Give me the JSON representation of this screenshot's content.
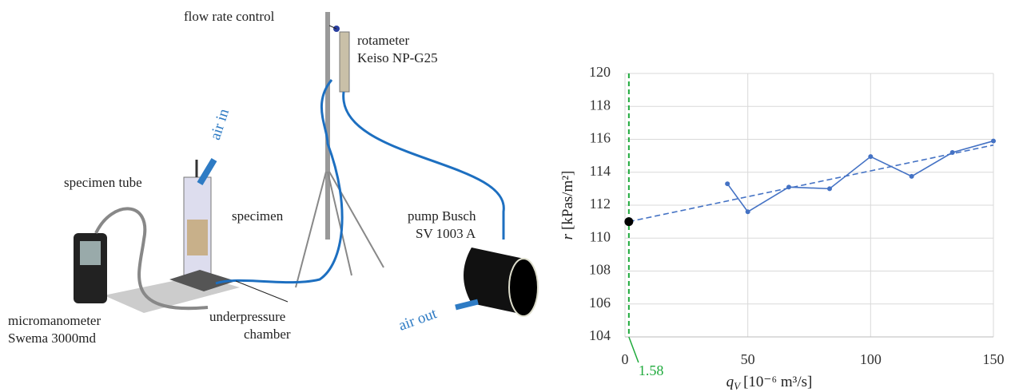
{
  "diagram": {
    "labels": {
      "flow_rate_control": "flow rate control",
      "rotameter": "rotameter",
      "rotameter_model": "Keiso NP-G25",
      "air_in": "air in",
      "specimen_tube": "specimen tube",
      "specimen": "specimen",
      "pump": "pump Busch",
      "pump_model": "SV 1003 A",
      "micromanometer": "micromanometer",
      "micromanometer_model": "Swema 3000md",
      "chamber_1": "underpressure",
      "chamber_2": "chamber",
      "air_out": "air out"
    }
  },
  "chart_data": {
    "type": "line",
    "xlabel": {
      "symbol": "q",
      "subscript": "V",
      "unit": "[10⁻⁶ m³/s]"
    },
    "ylabel": {
      "symbol": "r",
      "unit": "[kPas/m²]"
    },
    "xlim": [
      0,
      150
    ],
    "xticks": [
      0,
      50,
      100,
      150
    ],
    "ylim": [
      104,
      120
    ],
    "yticks": [
      104,
      106,
      108,
      110,
      112,
      114,
      116,
      118,
      120
    ],
    "grid": true,
    "series": [
      {
        "style": "solid-markers",
        "color": "#4472c4",
        "x": [
          41.7,
          50,
          66.7,
          83.3,
          100,
          116.7,
          133.3,
          150
        ],
        "values": [
          113.3,
          111.6,
          113.1,
          113.0,
          114.95,
          113.75,
          115.2,
          115.9
        ]
      },
      {
        "style": "dashed",
        "color": "#4472c4",
        "x": [
          1.58,
          150
        ],
        "values": [
          111.0,
          115.65
        ]
      },
      {
        "style": "point",
        "color": "#000000",
        "x": [
          1.58
        ],
        "values": [
          111.0
        ]
      }
    ],
    "vline": {
      "x": 1.58,
      "label": "1.58",
      "color": "#1faa3c"
    }
  }
}
